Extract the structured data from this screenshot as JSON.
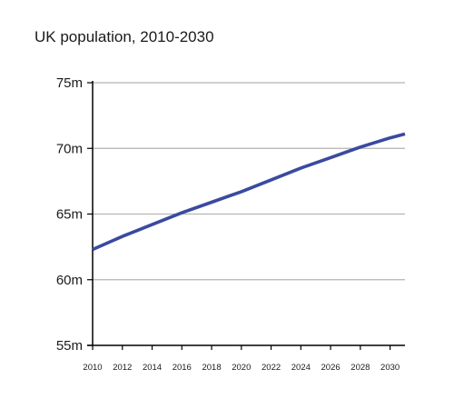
{
  "chart_data": {
    "type": "line",
    "title": "UK population, 2010-2030",
    "xlabel": "",
    "ylabel": "",
    "x": [
      2010,
      2012,
      2014,
      2016,
      2018,
      2020,
      2022,
      2024,
      2026,
      2028,
      2030,
      2031
    ],
    "series": [
      {
        "values": [
          62.3,
          63.3,
          64.2,
          65.1,
          65.9,
          66.7,
          67.6,
          68.5,
          69.3,
          70.1,
          70.8,
          71.1
        ],
        "color": "#3a4a9f"
      }
    ],
    "xlim": [
      2010,
      2031
    ],
    "ylim": [
      55,
      75
    ],
    "yticks": [
      55,
      60,
      65,
      70,
      75
    ],
    "ytick_labels": [
      "55m",
      "60m",
      "65m",
      "70m",
      "75m"
    ],
    "xticks": [
      2010,
      2012,
      2014,
      2016,
      2018,
      2020,
      2022,
      2024,
      2026,
      2028,
      2030
    ],
    "grid": true,
    "grid_color": "#b3b3b3",
    "axis_color": "#000000"
  }
}
